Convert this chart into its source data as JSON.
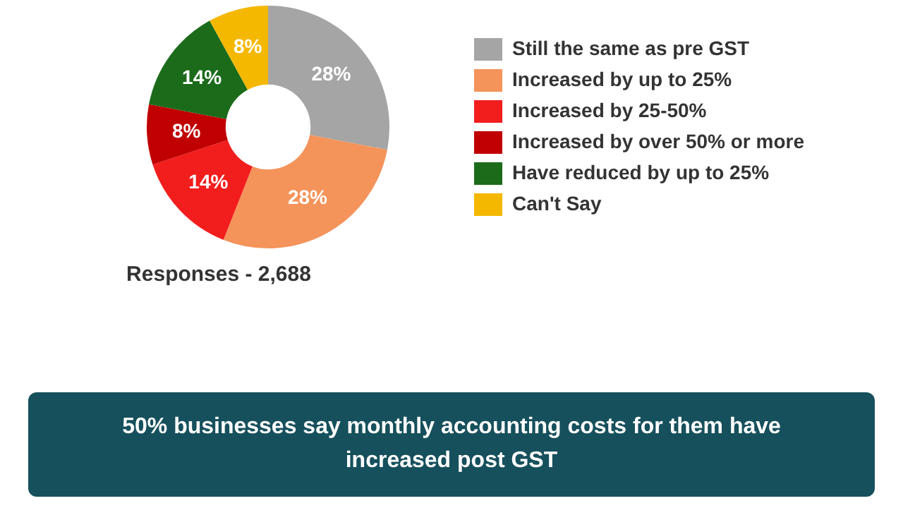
{
  "chart_data": {
    "type": "donut",
    "title": "50% businesses say monthly accounting costs for them have increased post GST",
    "categories": [
      "Still the same as pre GST",
      "Increased by up to 25%",
      "Increased by 25-50%",
      "Increased by over 50% or more",
      "Have reduced by up to 25%",
      "Can't Say"
    ],
    "values": [
      28,
      28,
      14,
      8,
      14,
      8
    ],
    "value_labels": [
      "28%",
      "28%",
      "14%",
      "8%",
      "14%",
      "8%"
    ],
    "colors": [
      "#a5a5a5",
      "#f4935a",
      "#f21d1d",
      "#c00000",
      "#1b6b1b",
      "#f5b800"
    ],
    "legend": "right",
    "annotations": [
      "Responses - 2,688"
    ]
  }
}
